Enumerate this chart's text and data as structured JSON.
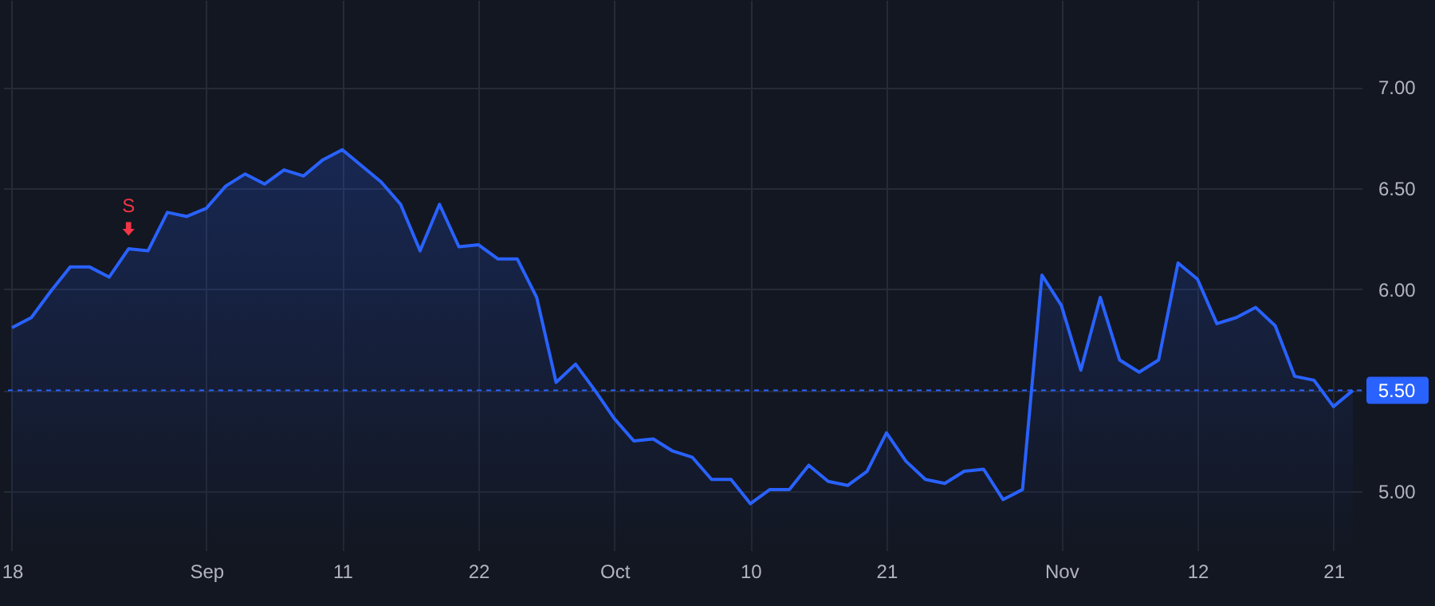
{
  "chart_data": {
    "type": "area",
    "categories": [
      "18",
      null,
      null,
      null,
      null,
      null,
      null,
      null,
      null,
      null,
      "Sep",
      null,
      null,
      null,
      null,
      null,
      null,
      "11",
      null,
      null,
      null,
      null,
      null,
      null,
      "22",
      null,
      null,
      null,
      null,
      null,
      null,
      "Oct",
      null,
      null,
      null,
      null,
      null,
      null,
      "10",
      null,
      null,
      null,
      null,
      null,
      null,
      "21",
      null,
      null,
      null,
      null,
      null,
      null,
      null,
      null,
      "Nov",
      null,
      null,
      null,
      null,
      null,
      null,
      "12",
      null,
      null,
      null,
      null,
      null,
      null,
      "21",
      null
    ],
    "series": [
      {
        "color": "#2962ff",
        "values": [
          5.81,
          5.86,
          5.99,
          6.11,
          6.11,
          6.06,
          6.2,
          6.19,
          6.38,
          6.36,
          6.4,
          6.51,
          6.57,
          6.52,
          6.59,
          6.56,
          6.64,
          6.69,
          6.61,
          6.53,
          6.42,
          6.19,
          6.42,
          6.21,
          6.22,
          6.15,
          6.15,
          5.96,
          5.54,
          5.63,
          5.5,
          5.36,
          5.25,
          5.26,
          5.2,
          5.17,
          5.06,
          5.06,
          4.94,
          5.01,
          5.01,
          5.13,
          5.05,
          5.03,
          5.1,
          5.29,
          5.15,
          5.06,
          5.04,
          5.1,
          5.11,
          4.96,
          5.01,
          6.07,
          5.92,
          5.6,
          5.96,
          5.65,
          5.59,
          5.65,
          6.13,
          6.05,
          5.83,
          5.86,
          5.91,
          5.82,
          5.57,
          5.55,
          5.42,
          5.5
        ]
      }
    ],
    "ylim": [
      4.71,
      7.43
    ],
    "yticks": [
      {
        "value": 5,
        "label": "5.00"
      },
      {
        "value": 5.5,
        "label": null
      },
      {
        "value": 6,
        "label": "6.00"
      },
      {
        "value": 6.5,
        "label": "6.50"
      },
      {
        "value": 7,
        "label": "7.00"
      }
    ],
    "ref_lines": [
      {
        "axis": "y",
        "value": 5.5,
        "label": "5.50",
        "color": "#2962ff",
        "line_style": "dashed"
      }
    ],
    "annotations": [
      {
        "text": "S",
        "y": 6.2
      }
    ],
    "grid": true
  }
}
